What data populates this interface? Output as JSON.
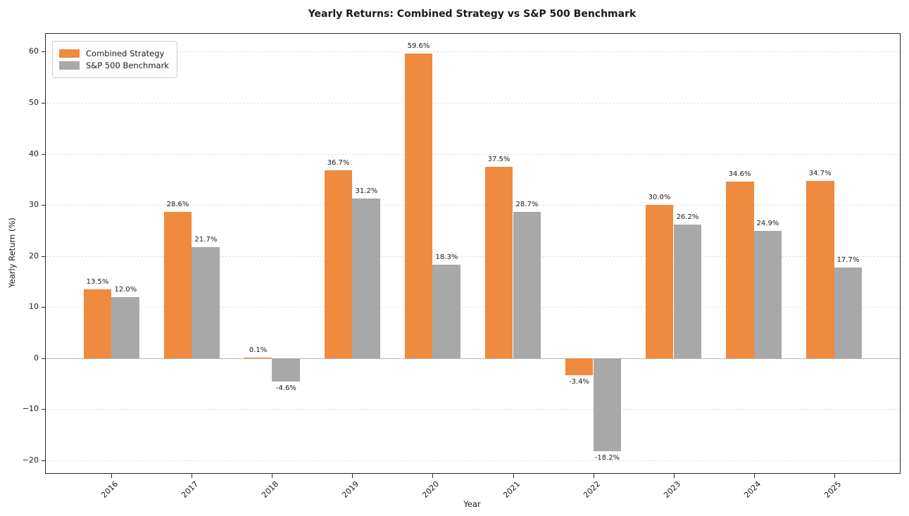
{
  "title": "Yearly Returns: Combined Strategy vs S&P 500 Benchmark",
  "chart_data": {
    "type": "bar",
    "categories": [
      "2016",
      "2017",
      "2018",
      "2019",
      "2020",
      "2021",
      "2022",
      "2023",
      "2024",
      "2025"
    ],
    "series": [
      {
        "name": "Combined Strategy",
        "color": "#ef8a3e",
        "values": [
          13.5,
          28.6,
          0.1,
          36.7,
          59.6,
          37.5,
          -3.4,
          30.0,
          34.6,
          34.7
        ],
        "labels": [
          "13.5%",
          "28.6%",
          "0.1%",
          "36.7%",
          "59.6%",
          "37.5%",
          "-3.4%",
          "30.0%",
          "34.6%",
          "34.7%"
        ]
      },
      {
        "name": "S&P 500 Benchmark",
        "color": "#a8a8a8",
        "values": [
          12.0,
          21.7,
          -4.6,
          31.2,
          18.3,
          28.7,
          -18.2,
          26.2,
          24.9,
          17.7
        ],
        "labels": [
          "12.0%",
          "21.7%",
          "-4.6%",
          "31.2%",
          "18.3%",
          "28.7%",
          "-18.2%",
          "26.2%",
          "24.9%",
          "17.7%"
        ]
      }
    ],
    "title": "Yearly Returns: Combined Strategy vs S&P 500 Benchmark",
    "xlabel": "Year",
    "ylabel": "Yearly Return (%)",
    "yticks": [
      -20,
      -10,
      0,
      10,
      20,
      30,
      40,
      50,
      60
    ],
    "ylim": [
      -22.5,
      63.5
    ],
    "grid": true,
    "grid_style": "dashed",
    "legend_position": "top-left",
    "colors": {
      "combined_strategy": "#ef8a3e",
      "sp500_benchmark": "#a8a8a8",
      "gridline": "#e2e2e2",
      "zero_line": "#b5b5b5",
      "spine": "#2b2b2b",
      "background": "#ffffff"
    }
  }
}
